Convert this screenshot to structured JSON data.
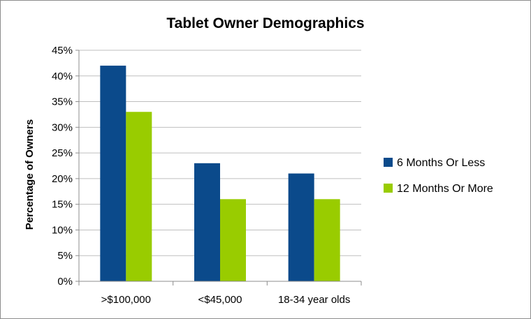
{
  "chart_data": {
    "type": "bar",
    "title": "Tablet Owner Demographics",
    "xlabel": "",
    "ylabel": "Percentage of Owners",
    "categories": [
      ">$100,000",
      "<$45,000",
      "18-34 year olds"
    ],
    "series": [
      {
        "name": "6 Months Or Less",
        "values": [
          42,
          23,
          21
        ],
        "color": "#0b4a8b"
      },
      {
        "name": "12 Months Or More",
        "values": [
          33,
          16,
          16
        ],
        "color": "#99cc00"
      }
    ],
    "ylim": [
      0,
      45
    ],
    "y_ticks": [
      "0%",
      "5%",
      "10%",
      "15%",
      "20%",
      "25%",
      "30%",
      "35%",
      "40%",
      "45%"
    ],
    "grid": true,
    "legend_position": "right",
    "gridline_color": "#bfbfbf",
    "axis_color": "#8c8c8c"
  }
}
